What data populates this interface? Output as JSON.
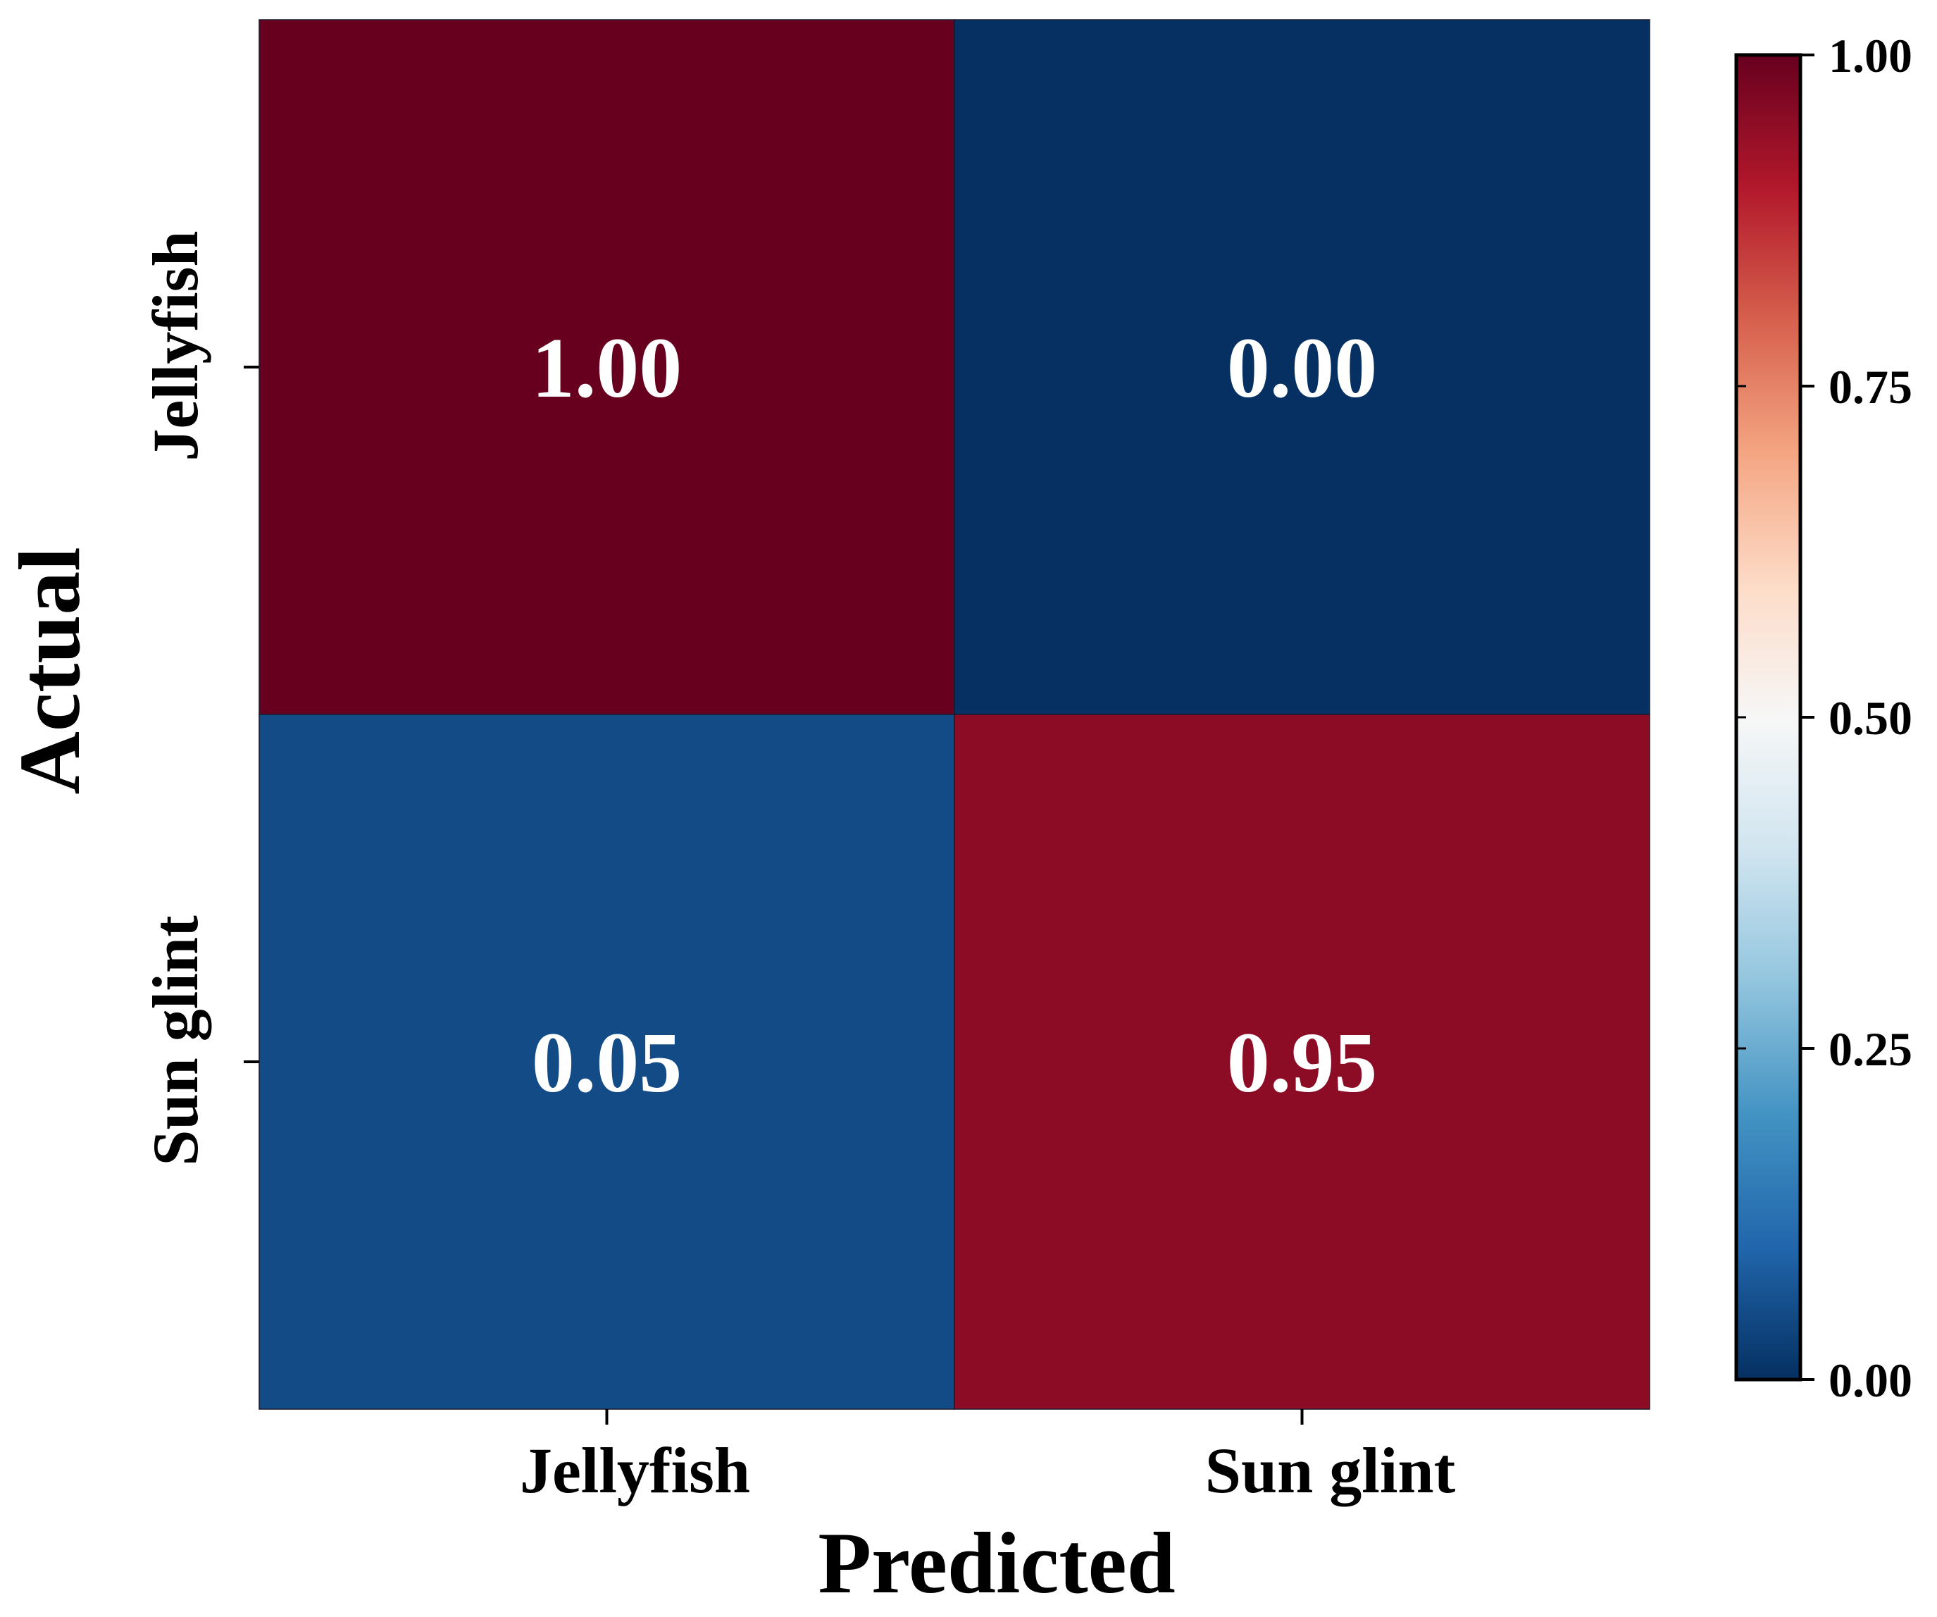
{
  "chart_data": {
    "type": "heatmap",
    "title": "",
    "xlabel": "Predicted",
    "ylabel": "Actual",
    "x_categories": [
      "Jellyfish",
      "Sun glint"
    ],
    "y_categories": [
      "Jellyfish",
      "Sun glint"
    ],
    "values": [
      [
        1.0,
        0.0
      ],
      [
        0.05,
        0.95
      ]
    ],
    "value_labels": [
      [
        "1.00",
        "0.00"
      ],
      [
        "0.05",
        "0.95"
      ]
    ],
    "colormap": "RdBu_r",
    "colormap_stops": [
      "#053061",
      "#2166ac",
      "#4393c3",
      "#92c5de",
      "#d1e5f0",
      "#f7f7f7",
      "#fddbc7",
      "#f4a582",
      "#d6604d",
      "#b2182b",
      "#67001f"
    ],
    "colorbar": {
      "range": [
        0.0,
        1.0
      ],
      "ticks": [
        0.0,
        0.25,
        0.5,
        0.75,
        1.0
      ],
      "tick_labels": [
        "0.00",
        "0.25",
        "0.50",
        "0.75",
        "1.00"
      ],
      "placement": "right"
    },
    "grid": false,
    "legend": "none"
  }
}
